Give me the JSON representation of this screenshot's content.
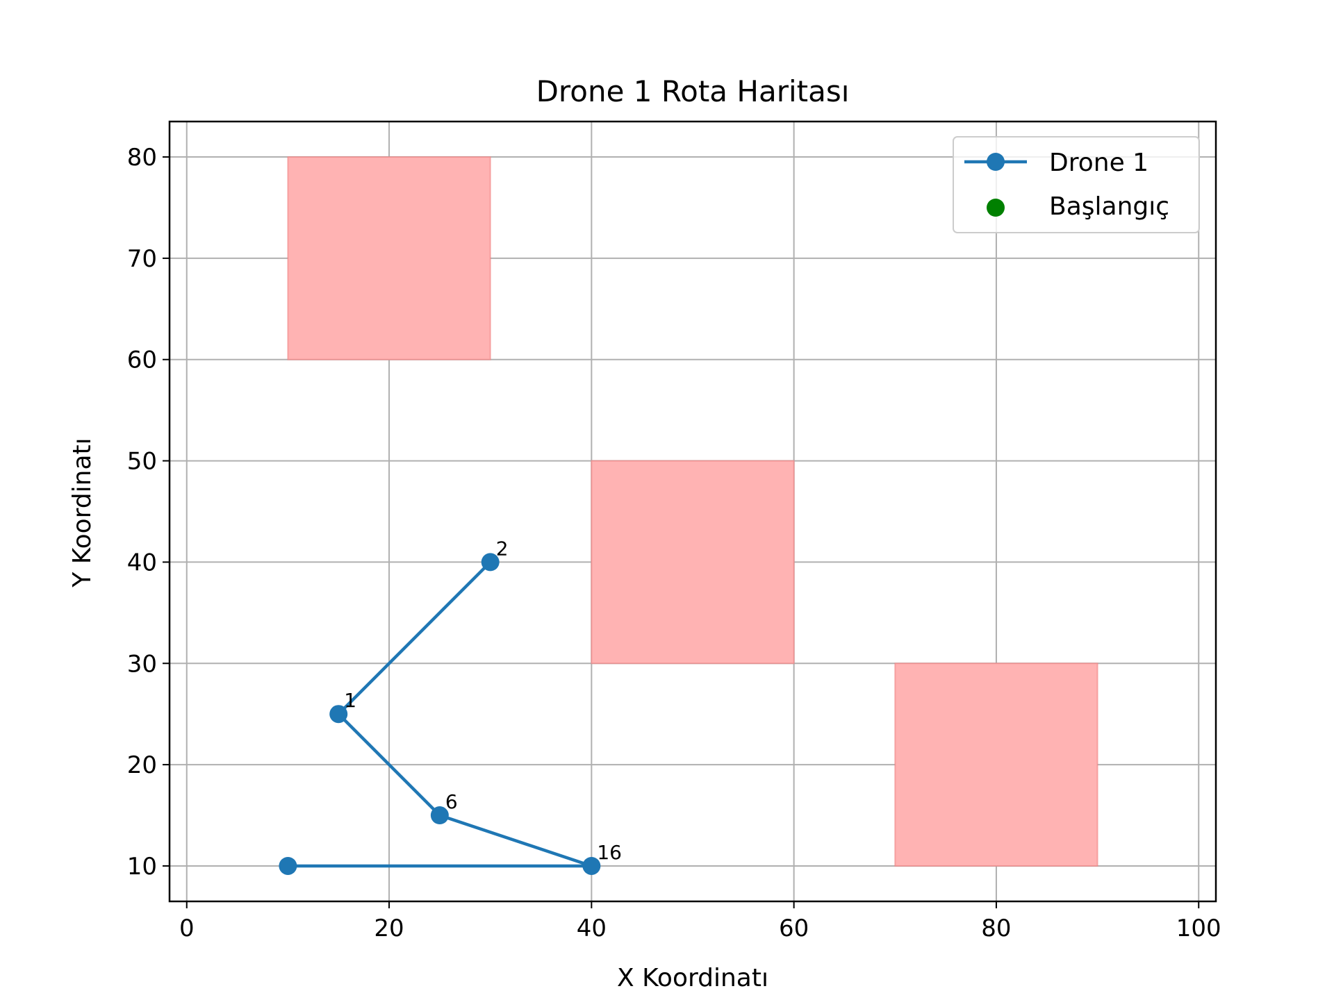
{
  "chart_data": {
    "type": "line",
    "title": "Drone 1 Rota Haritası",
    "xlabel": "X Koordinatı",
    "ylabel": "Y Koordinatı",
    "xlim": [
      -1.7,
      101.7
    ],
    "ylim": [
      6.5,
      83.5
    ],
    "xticks": [
      0,
      20,
      40,
      60,
      80,
      100
    ],
    "yticks": [
      10,
      20,
      30,
      40,
      50,
      60,
      70,
      80
    ],
    "grid": true,
    "legend_position": "top-right",
    "series": [
      {
        "name": "Drone 1",
        "color": "#1f77b4",
        "points": [
          [
            10,
            10
          ],
          [
            40,
            10
          ],
          [
            25,
            15
          ],
          [
            15,
            25
          ],
          [
            30,
            40
          ]
        ]
      }
    ],
    "start_point": {
      "name": "Başlangıç",
      "color": "#008000",
      "x": 10,
      "y": 10
    },
    "point_labels": [
      {
        "text": "16",
        "x": 40,
        "y": 10
      },
      {
        "text": "6",
        "x": 25,
        "y": 15
      },
      {
        "text": "1",
        "x": 15,
        "y": 25
      },
      {
        "text": "2",
        "x": 30,
        "y": 40
      }
    ],
    "obstacles": [
      {
        "x0": 10,
        "x1": 30,
        "y0": 60,
        "y1": 80,
        "color": "#ffb3b3"
      },
      {
        "x0": 40,
        "x1": 60,
        "y0": 30,
        "y1": 50,
        "color": "#ffb3b3"
      },
      {
        "x0": 70,
        "x1": 90,
        "y0": 10,
        "y1": 30,
        "color": "#ffb3b3"
      }
    ]
  }
}
